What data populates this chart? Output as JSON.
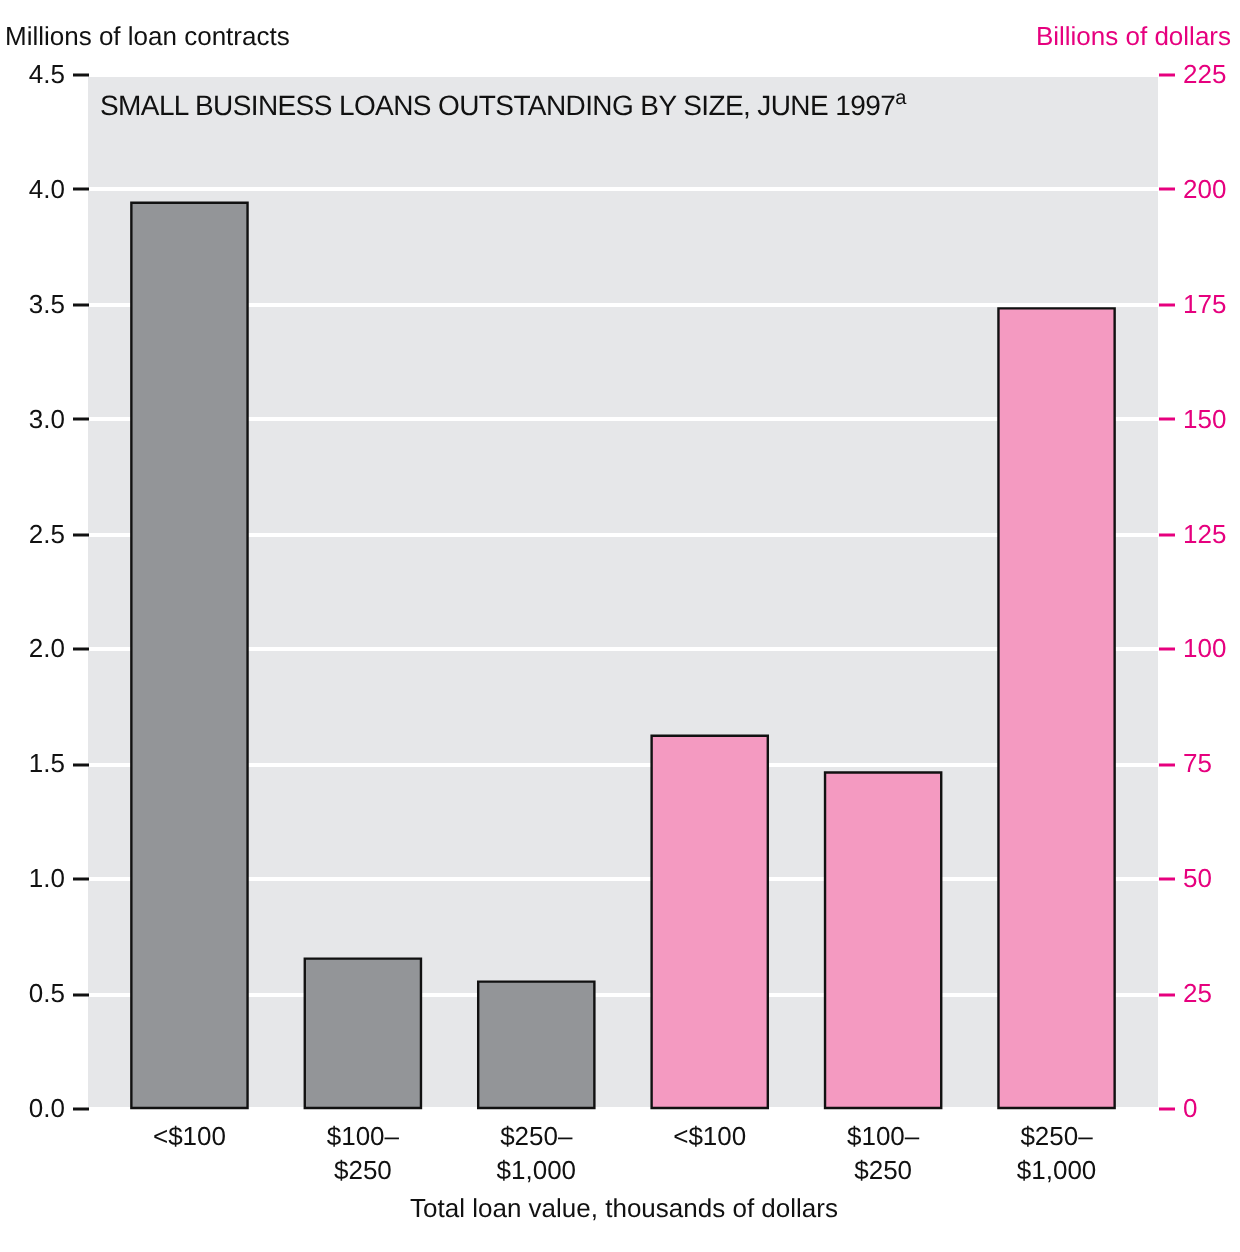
{
  "chart_data": {
    "type": "bar",
    "title": "SMALL BUSINESS LOANS OUTSTANDING BY SIZE, JUNE 1997$^{a}$",
    "xlabel": "Total loan value, thousands of dollars",
    "ylabel": "Millions of loan contracts",
    "y2label": "Billions of dollars",
    "categories": [
      "<$100",
      "$100–$250",
      "$250–$1,000",
      "<$100",
      "$100–$250",
      "$250–$1,000"
    ],
    "series": [
      {
        "color": "#939598",
        "values": [
          3.94,
          0.65,
          0.55,
          null,
          null,
          null
        ]
      },
      {
        "color": "#f49ac1",
        "axis": "y2",
        "values": [
          null,
          null,
          null,
          81,
          73,
          174
        ]
      }
    ],
    "ylim": [
      0,
      4.5
    ],
    "yticks": [
      {
        "value": 0,
        "label": "0.0"
      },
      {
        "value": 0.5,
        "label": "0.5"
      },
      {
        "value": 1,
        "label": "1.0"
      },
      {
        "value": 1.5,
        "label": "1.5"
      },
      {
        "value": 2,
        "label": "2.0"
      },
      {
        "value": 2.5,
        "label": "2.5"
      },
      {
        "value": 3,
        "label": "3.0"
      },
      {
        "value": 3.5,
        "label": "3.5"
      },
      {
        "value": 4,
        "label": "4.0"
      },
      {
        "value": 4.5,
        "label": "4.5"
      }
    ],
    "y2lim": [
      0,
      225
    ],
    "y2ticks": [
      0,
      25,
      50,
      75,
      100,
      125,
      150,
      175,
      200,
      225
    ],
    "grid": "y"
  }
}
